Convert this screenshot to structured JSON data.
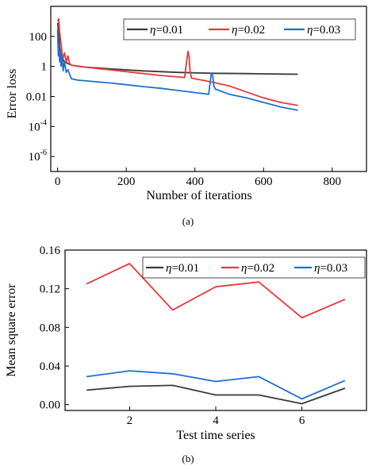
{
  "colors": {
    "eta001": "#3a3a3a",
    "eta002": "#e8383d",
    "eta003": "#1f6fd1",
    "axis": "#000000"
  },
  "panels": [
    {
      "caption": "(a)",
      "chart_data": {
        "type": "line",
        "title": "",
        "xlabel": "Number of iterations",
        "ylabel": "Error loss",
        "xlim": [
          -20,
          900
        ],
        "ylim_log10": [
          -7,
          4
        ],
        "y_scale": "log",
        "x_ticks": [
          0,
          200,
          400,
          600,
          800
        ],
        "x_tick_labels": [
          "0",
          "200",
          "400",
          "600",
          "800"
        ],
        "y_ticks_log10": [
          -6,
          -4,
          -2,
          0,
          2
        ],
        "y_tick_labels": [
          {
            "base": "10",
            "exp": "-6"
          },
          {
            "base": "10",
            "exp": "-4"
          },
          {
            "base": "0.01",
            "exp": ""
          },
          {
            "base": "1",
            "exp": ""
          },
          {
            "base": "100",
            "exp": ""
          }
        ],
        "grid": false,
        "legend_position": "top",
        "series": [
          {
            "name": "η=0.01",
            "color": "#3a3a3a",
            "x": [
              0,
              3,
              6,
              10,
              20,
              40,
              80,
              150,
              250,
              350,
              450,
              550,
              600,
              650,
              700
            ],
            "y": [
              800,
              150,
              20,
              5,
              2,
              1.2,
              0.9,
              0.7,
              0.5,
              0.4,
              0.35,
              0.33,
              0.32,
              0.31,
              0.3
            ]
          },
          {
            "name": "η=0.02",
            "color": "#e8383d",
            "x": [
              0,
              3,
              6,
              10,
              15,
              20,
              25,
              30,
              35,
              40,
              60,
              100,
              150,
              200,
              250,
              300,
              350,
              370,
              375,
              380,
              383,
              386,
              390,
              400,
              450,
              500,
              550,
              600,
              650,
              700
            ],
            "y": [
              1000,
              1500,
              200,
              30,
              3,
              8,
              2,
              5,
              1.5,
              1.2,
              1.0,
              0.8,
              0.6,
              0.45,
              0.33,
              0.25,
              0.2,
              0.18,
              1.5,
              10,
              5,
              0.5,
              0.17,
              0.15,
              0.09,
              0.05,
              0.02,
              0.008,
              0.004,
              0.0025
            ]
          },
          {
            "name": "η=0.03",
            "color": "#1f6fd1",
            "x": [
              0,
              2,
              4,
              6,
              8,
              10,
              13,
              16,
              20,
              25,
              30,
              40,
              60,
              100,
              150,
              200,
              250,
              300,
              350,
              400,
              440,
              448,
              452,
              455,
              460,
              470,
              500,
              550,
              600,
              650,
              700
            ],
            "y": [
              300,
              5,
              30,
              2,
              10,
              1,
              5,
              0.5,
              2,
              0.4,
              0.6,
              0.15,
              0.12,
              0.1,
              0.08,
              0.06,
              0.045,
              0.035,
              0.025,
              0.018,
              0.014,
              0.35,
              0.25,
              0.05,
              0.03,
              0.025,
              0.014,
              0.008,
              0.004,
              0.002,
              0.0012
            ]
          }
        ]
      }
    },
    {
      "caption": "(b)",
      "chart_data": {
        "type": "line",
        "title": "",
        "xlabel": "Test time series",
        "ylabel": "Mean square error",
        "xlim": [
          0.5,
          7.5
        ],
        "ylim": [
          -0.006,
          0.16
        ],
        "x_ticks": [
          2,
          4,
          6
        ],
        "x_tick_labels": [
          "2",
          "4",
          "6"
        ],
        "y_ticks": [
          0,
          0.04,
          0.08,
          0.12,
          0.16
        ],
        "y_tick_labels": [
          "0.00",
          "0.04",
          "0.08",
          "0.12",
          "0.16"
        ],
        "grid": false,
        "legend_position": "top",
        "x": [
          1,
          2,
          3,
          4,
          5,
          6,
          7
        ],
        "series": [
          {
            "name": "η=0.01",
            "color": "#3a3a3a",
            "values": [
              0.015,
              0.019,
              0.02,
              0.01,
              0.01,
              0.001,
              0.017
            ]
          },
          {
            "name": "η=0.02",
            "color": "#e8383d",
            "values": [
              0.125,
              0.146,
              0.098,
              0.122,
              0.127,
              0.09,
              0.109
            ]
          },
          {
            "name": "η=0.03",
            "color": "#1f6fd1",
            "values": [
              0.029,
              0.035,
              0.032,
              0.024,
              0.029,
              0.006,
              0.025
            ]
          }
        ]
      }
    }
  ]
}
